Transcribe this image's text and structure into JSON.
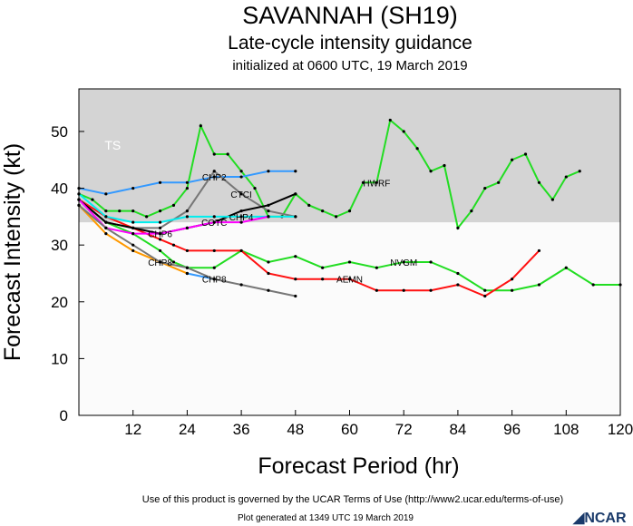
{
  "header": {
    "title": "SAVANNAH (SH19)",
    "subtitle": "Late-cycle intensity guidance",
    "initialized": "initialized at 0600 UTC, 19 March 2019"
  },
  "footer": {
    "terms": "Use of this product is governed by the UCAR Terms of Use (http://www2.ucar.edu/terms-of-use)",
    "generated": "Plot generated at 1349 UTC   19 March 2019",
    "logo": "NCAR"
  },
  "chart_data": {
    "type": "line",
    "xlabel": "Forecast Period (hr)",
    "ylabel": "Forecast Intensity (kt)",
    "xlim": [
      0,
      120
    ],
    "ylim": [
      0,
      57.5
    ],
    "xticks": [
      12,
      24,
      36,
      48,
      60,
      72,
      84,
      96,
      108,
      120
    ],
    "yticks": [
      0,
      10,
      20,
      30,
      40,
      50
    ],
    "bands": [
      {
        "label": "TS",
        "from": 34,
        "to": 57.5,
        "color": "#d4d4d4"
      }
    ],
    "series": [
      {
        "name": "HWRF",
        "color": "#22dd22",
        "x": [
          0,
          3,
          6,
          9,
          12,
          15,
          18,
          21,
          24,
          27,
          30,
          33,
          36,
          39,
          42,
          45,
          48,
          51,
          54,
          57,
          60,
          63,
          66,
          69,
          72,
          75,
          78,
          81,
          84,
          87,
          90,
          93,
          96,
          99,
          102,
          105,
          108,
          111
        ],
        "y": [
          39,
          38,
          36,
          36,
          36,
          35,
          36,
          37,
          40,
          51,
          46,
          46,
          43,
          40,
          35,
          35,
          39,
          37,
          36,
          35,
          36,
          41,
          41,
          52,
          50,
          47,
          43,
          44,
          33,
          36,
          40,
          41,
          45,
          46,
          41,
          38,
          42,
          43
        ]
      },
      {
        "name": "NVGM",
        "color": "#22dd22",
        "x": [
          0,
          6,
          12,
          18,
          21,
          24,
          30,
          36,
          42,
          48,
          54,
          60,
          66,
          72,
          78,
          84,
          90,
          96,
          102,
          108,
          114,
          120
        ],
        "y": [
          38,
          34,
          32,
          29,
          27,
          26,
          26,
          29,
          27,
          28,
          26,
          27,
          26,
          27,
          27,
          25,
          22,
          22,
          23,
          26,
          23,
          23
        ]
      },
      {
        "name": "AEMN",
        "color": "#ff1111",
        "x": [
          0,
          6,
          12,
          18,
          21,
          24,
          30,
          36,
          42,
          48,
          54,
          60,
          66,
          72,
          78,
          84,
          90,
          96,
          102
        ],
        "y": [
          38,
          35,
          33,
          31,
          30,
          29,
          29,
          29,
          25,
          24,
          24,
          24,
          22,
          22,
          22,
          23,
          21,
          24,
          29
        ]
      },
      {
        "name": "CHP2",
        "color": "#3399ff",
        "x": [
          0,
          6,
          12,
          18,
          24,
          30,
          36,
          42,
          48
        ],
        "y": [
          40,
          39,
          40,
          41,
          41,
          42,
          42,
          43,
          43
        ]
      },
      {
        "name": "CTCI",
        "color": "#777777",
        "x": [
          0,
          6,
          12,
          18,
          24,
          30,
          36,
          42,
          48
        ],
        "y": [
          38,
          34,
          33,
          33,
          36,
          43,
          39,
          36,
          35
        ]
      },
      {
        "name": "COTC",
        "color": "#000000",
        "x": [
          0,
          6,
          12,
          18,
          24,
          30,
          36,
          42,
          48
        ],
        "y": [
          38,
          34,
          33,
          32,
          33,
          34,
          36,
          37,
          39
        ]
      },
      {
        "name": "CHP4",
        "color": "#00eeee",
        "x": [
          0,
          6,
          12,
          18,
          24,
          30,
          36,
          42,
          48
        ],
        "y": [
          39,
          35,
          34,
          34,
          35,
          35,
          35,
          35,
          35
        ]
      },
      {
        "name": "CHP6",
        "color": "#ff00ff",
        "x": [
          0,
          6,
          12,
          18,
          24,
          30,
          36,
          42
        ],
        "y": [
          38,
          33,
          32,
          32,
          33,
          34,
          34,
          35
        ]
      },
      {
        "name": "CHP8",
        "color": "#ff9900",
        "x": [
          0,
          6,
          12,
          18,
          24
        ],
        "y": [
          37,
          32,
          29,
          27,
          25
        ]
      },
      {
        "name": "CHP8",
        "color": "#3399ff",
        "x": [
          24,
          30
        ],
        "y": [
          25,
          24
        ]
      },
      {
        "name": "",
        "color": "#777777",
        "x": [
          0,
          6,
          12,
          18,
          24,
          30,
          36,
          42,
          48
        ],
        "y": [
          37,
          33,
          30,
          27,
          26,
          24,
          23,
          22,
          21
        ]
      }
    ]
  }
}
